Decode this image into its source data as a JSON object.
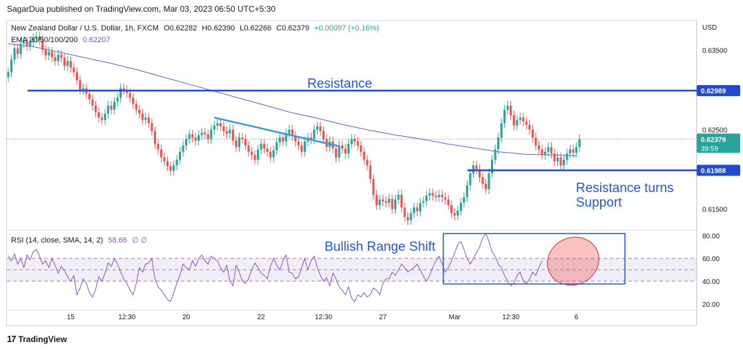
{
  "publisher": "SagarDua published on TradingView.com, Mar 03, 2023 06:50 UTC+5:30",
  "legend": {
    "symbol": "New Zealand Dollar / U.S. Dollar, 1h, FXCM",
    "open": "O0.62282",
    "high": "H0.62390",
    "low": "L0.62266",
    "close": "C0.62379",
    "change": "+0.00097 (+0.16%)",
    "ema_label": "EMA 20/50/100/200",
    "ema_value": "0.62207",
    "rsi_label": "RSI (14, close, SMA, 14, 2)",
    "rsi_value": "58.66",
    "rsi_extra": "∅ ∅"
  },
  "colors": {
    "up": "#26a69a",
    "down": "#ef5350",
    "ema": "#5b5fd6",
    "level_line": "#1e4bd2",
    "trendline": "#2d9bf0",
    "rsi": "#7e57c2",
    "annotation": "#1e56e0",
    "price_tag": "#1e4bd2",
    "current_tag": "#26a69a"
  },
  "chart_data": {
    "type": "candlestick",
    "symbol": "NZD/USD",
    "timeframe": "1h",
    "price_axis": {
      "unit": "USD",
      "ylim": [
        0.6128,
        0.6385
      ],
      "ticks": [
        "0.63500",
        "0.63000",
        "0.62500",
        "0.62000",
        "0.61500"
      ]
    },
    "x_ticks": [
      {
        "label": "15",
        "idx": 20
      },
      {
        "label": "12:30",
        "idx": 38
      },
      {
        "label": "20",
        "idx": 57
      },
      {
        "label": "22",
        "idx": 81
      },
      {
        "label": "12:30",
        "idx": 101
      },
      {
        "label": "27",
        "idx": 120
      },
      {
        "label": "Mar",
        "idx": 143
      },
      {
        "label": "12:30",
        "idx": 161
      },
      {
        "label": "6",
        "idx": 182
      }
    ],
    "closes": [
      0.6322,
      0.6338,
      0.6352,
      0.6345,
      0.6358,
      0.6361,
      0.6355,
      0.636,
      0.6365,
      0.6367,
      0.6362,
      0.635,
      0.6343,
      0.6348,
      0.6341,
      0.6336,
      0.6344,
      0.634,
      0.633,
      0.6336,
      0.6328,
      0.6322,
      0.6312,
      0.63,
      0.6302,
      0.6295,
      0.6288,
      0.628,
      0.6272,
      0.6265,
      0.6262,
      0.627,
      0.628,
      0.6275,
      0.6285,
      0.629,
      0.6302,
      0.63,
      0.6296,
      0.629,
      0.6282,
      0.6275,
      0.627,
      0.6262,
      0.6265,
      0.6258,
      0.6248,
      0.6232,
      0.6225,
      0.6215,
      0.621,
      0.6204,
      0.6198,
      0.6205,
      0.6212,
      0.6222,
      0.623,
      0.6238,
      0.6244,
      0.624,
      0.6236,
      0.6243,
      0.6246,
      0.6244,
      0.6238,
      0.625,
      0.6255,
      0.6258,
      0.6254,
      0.6248,
      0.6245,
      0.625,
      0.6236,
      0.6228,
      0.624,
      0.6238,
      0.623,
      0.6222,
      0.6218,
      0.6212,
      0.6225,
      0.6232,
      0.6226,
      0.6222,
      0.6215,
      0.6224,
      0.6234,
      0.624,
      0.6235,
      0.6245,
      0.625,
      0.6242,
      0.6235,
      0.623,
      0.6222,
      0.6235,
      0.624,
      0.6238,
      0.625,
      0.6254,
      0.6248,
      0.6238,
      0.6228,
      0.6235,
      0.6226,
      0.6215,
      0.623,
      0.6226,
      0.622,
      0.6232,
      0.6238,
      0.6235,
      0.623,
      0.6222,
      0.6212,
      0.6205,
      0.6188,
      0.6168,
      0.6155,
      0.6162,
      0.616,
      0.6158,
      0.6163,
      0.615,
      0.6162,
      0.6168,
      0.6152,
      0.614,
      0.6136,
      0.6145,
      0.6152,
      0.6147,
      0.6158,
      0.616,
      0.6167,
      0.617,
      0.6167,
      0.6165,
      0.6168,
      0.6165,
      0.6162,
      0.6155,
      0.6145,
      0.6142,
      0.6148,
      0.6158,
      0.6165,
      0.618,
      0.6195,
      0.6205,
      0.62,
      0.619,
      0.6182,
      0.6175,
      0.6195,
      0.6212,
      0.6225,
      0.624,
      0.6258,
      0.6275,
      0.628,
      0.6268,
      0.6255,
      0.6262,
      0.6265,
      0.626,
      0.6256,
      0.625,
      0.624,
      0.623,
      0.6225,
      0.6218,
      0.6222,
      0.6228,
      0.622,
      0.621,
      0.6215,
      0.6205,
      0.6212,
      0.622,
      0.6225,
      0.6221,
      0.6228,
      0.6238
    ],
    "ema200": [
      0.6358,
      0.6354,
      0.6347,
      0.634,
      0.6333,
      0.6325,
      0.6316,
      0.6307,
      0.6298,
      0.6289,
      0.628,
      0.6271,
      0.6264,
      0.6256,
      0.6249,
      0.6243,
      0.6238,
      0.6232,
      0.6227,
      0.6222,
      0.6219,
      0.6218,
      0.6217
    ],
    "ema_total_bars": 182,
    "levels": [
      {
        "label": "Resistance",
        "value": 0.62989,
        "tag": "0.62989"
      },
      {
        "label": "Resistance turns",
        "label2": "Support",
        "value": 0.61988,
        "tag": "0.61988"
      }
    ],
    "current_price": {
      "tag": "0.62379",
      "countdown": "39:59"
    },
    "trendline": {
      "from": [
        66,
        0.6265
      ],
      "to": [
        106,
        0.6229
      ]
    },
    "rsi": {
      "ylim": [
        15,
        85
      ],
      "ticks": [
        "80.00",
        "60.00",
        "40.00",
        "20.00"
      ],
      "band": [
        40,
        60
      ],
      "values": [
        62,
        58,
        64,
        55,
        60,
        52,
        63,
        59,
        66,
        68,
        62,
        55,
        58,
        52,
        60,
        54,
        47,
        53,
        49,
        44,
        40,
        45,
        28,
        34,
        42,
        38,
        30,
        26,
        33,
        44,
        40,
        47,
        56,
        53,
        60,
        55,
        48,
        42,
        38,
        32,
        28,
        38,
        52,
        48,
        55,
        56,
        60,
        42,
        35,
        32,
        28,
        24,
        22,
        30,
        38,
        45,
        55,
        52,
        50,
        58,
        53,
        60,
        63,
        58,
        55,
        62,
        60,
        58,
        52,
        48,
        54,
        40,
        36,
        54,
        48,
        40,
        38,
        42,
        50,
        56,
        52,
        47,
        45,
        42,
        53,
        60,
        54,
        50,
        58,
        63,
        48,
        47,
        42,
        44,
        52,
        60,
        50,
        58,
        62,
        52,
        45,
        40,
        43,
        36,
        47,
        42,
        35,
        32,
        28,
        35,
        25,
        22,
        28,
        26,
        30,
        26,
        28,
        34,
        32,
        28,
        38,
        42,
        42,
        48,
        45,
        50,
        55,
        52,
        48,
        50,
        52,
        55,
        50,
        44,
        40,
        45,
        52,
        58,
        62,
        55,
        48,
        52,
        58,
        65,
        72,
        75,
        68,
        60,
        55,
        60,
        65,
        70,
        78,
        82,
        75,
        66,
        62,
        55,
        52,
        45,
        40,
        36,
        38,
        45,
        48,
        40,
        38,
        42,
        48,
        45,
        52,
        58
      ]
    },
    "annotations": {
      "resistance": "Resistance",
      "support_line1": "Resistance turns",
      "support_line2": "Support",
      "bullish": "Bullish Range Shift"
    },
    "price_axis_unit": "USD"
  },
  "footer": {
    "logo_text": "TradingView",
    "logo_glyph": "17"
  }
}
